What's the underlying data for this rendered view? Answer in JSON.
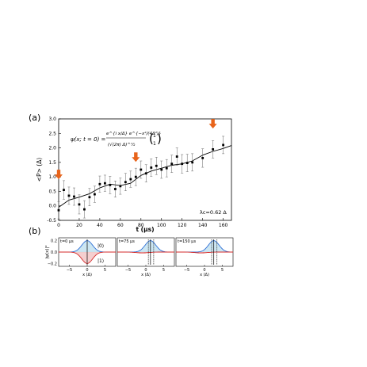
{
  "panel_a": {
    "label": "(a)",
    "formula_lhs": "ψ(x; t = 0) =",
    "formula_num": "e^{i x/Δ} e^{−x²/(4Δ²)}",
    "formula_den": "(√(2π) Δ)^½",
    "vector_top": "1",
    "vector_bottom": "1",
    "lambda_label": "λc=0.62 Δ"
  },
  "panel_b": {
    "label": "(b)",
    "ylabel": "|ψ(x)|²",
    "state0_label": "|0⟩",
    "state1_label": "|1⟩",
    "subplots": [
      {
        "title": "t=0 μs",
        "peak_x": 0.0
      },
      {
        "title": "t=75 μs",
        "peak_x": 1.3
      },
      {
        "title": "t=150 μs",
        "peak_x": 2.6
      }
    ]
  },
  "colors": {
    "arrow": "#e8641b",
    "state0": "#2f6fd6",
    "state0_fill": "#bfe0ef",
    "state1": "#d42a2a",
    "state1_fill": "#f3c3c3",
    "data": "#000000"
  },
  "chart_data": [
    {
      "type": "scatter",
      "title": "",
      "xlabel": "t (μs)",
      "ylabel": "<P> (Δ)",
      "xlim": [
        0,
        168
      ],
      "ylim": [
        -0.5,
        3.0
      ],
      "xticks": [
        "0",
        "20",
        "40",
        "60",
        "80",
        "100",
        "120",
        "140",
        "160"
      ],
      "yticks": [
        "-0.5",
        "0.0",
        "0.5",
        "1.0",
        "1.5",
        "2.0",
        "2.5",
        "3.0"
      ],
      "series": [
        {
          "x": [
            0,
            5,
            10,
            15,
            20,
            25,
            30,
            35,
            40,
            45,
            50,
            55,
            60,
            65,
            70,
            75,
            80,
            85,
            90,
            95,
            100,
            105,
            110,
            115,
            120,
            125,
            130,
            140,
            150,
            160
          ],
          "y": [
            -0.15,
            0.55,
            0.35,
            0.32,
            0.05,
            -0.12,
            0.3,
            0.4,
            0.75,
            0.78,
            0.72,
            0.58,
            0.68,
            0.82,
            0.92,
            1.0,
            1.25,
            1.12,
            1.32,
            1.38,
            1.25,
            1.3,
            1.45,
            1.7,
            1.45,
            1.48,
            1.5,
            1.65,
            1.95,
            2.1
          ],
          "yerr": [
            0.3,
            0.32,
            0.3,
            0.3,
            0.33,
            0.3,
            0.3,
            0.28,
            0.28,
            0.28,
            0.3,
            0.28,
            0.28,
            0.3,
            0.28,
            0.3,
            0.3,
            0.3,
            0.3,
            0.3,
            0.3,
            0.3,
            0.3,
            0.3,
            0.32,
            0.3,
            0.3,
            0.32,
            0.3,
            0.3
          ]
        },
        {
          "x": [
            0,
            10,
            20,
            30,
            40,
            50,
            60,
            70,
            80,
            90,
            100,
            110,
            120,
            130,
            140,
            150,
            160,
            168
          ],
          "y": [
            -0.05,
            0.2,
            0.3,
            0.42,
            0.62,
            0.75,
            0.7,
            0.78,
            1.05,
            1.2,
            1.3,
            1.4,
            1.45,
            1.55,
            1.75,
            1.88,
            1.98,
            2.08
          ]
        }
      ],
      "arrows_at": [
        [
          0,
          1.0
        ],
        [
          75,
          1.6
        ],
        [
          150,
          2.75
        ]
      ]
    },
    {
      "type": "line",
      "xlabel": "x (Δ)",
      "ylabel": "|ψ(x)|²",
      "xlim": [
        -8,
        8
      ],
      "ylim": [
        -0.25,
        0.25
      ],
      "xticks": [
        "−5",
        "0",
        "5"
      ],
      "yticks": [
        "−0.2",
        "0.0",
        "0.2"
      ]
    }
  ]
}
